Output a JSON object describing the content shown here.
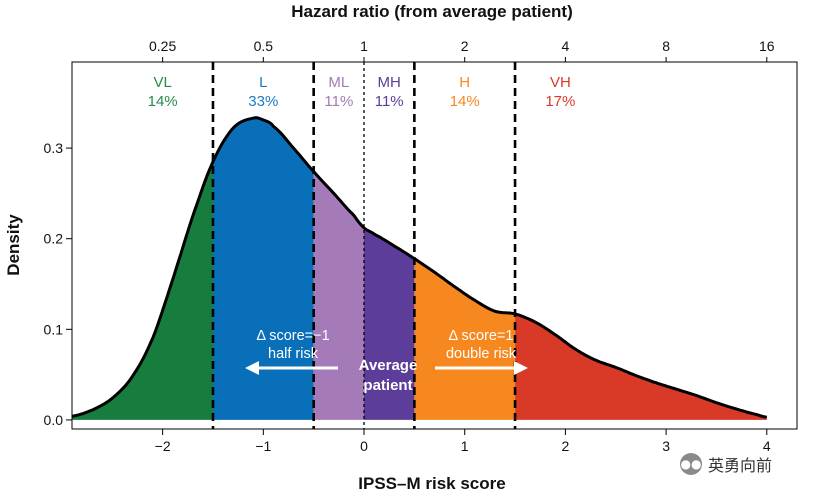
{
  "chart_data": {
    "type": "area",
    "xlabel": "IPSS–M risk score",
    "ylabel": "Density",
    "top_axis_label": "Hazard ratio (from average patient)",
    "xlim": [
      -2.9,
      4.3
    ],
    "ylim": [
      -0.01,
      0.395
    ],
    "x_ticks": [
      -2,
      -1,
      0,
      1,
      2,
      3,
      4
    ],
    "x_tick_labels": [
      "−2",
      "−1",
      "0",
      "1",
      "2",
      "3",
      "4"
    ],
    "y_ticks": [
      0.0,
      0.1,
      0.2,
      0.3
    ],
    "y_tick_labels": [
      "0.0",
      "0.1",
      "0.2",
      "0.3"
    ],
    "top_ticks_at_score": [
      -2,
      -1,
      0,
      1,
      2,
      3,
      4
    ],
    "top_tick_labels": [
      "0.25",
      "0.5",
      "1",
      "2",
      "4",
      "8",
      "16"
    ],
    "density_curve": {
      "x": [
        -2.9,
        -2.7,
        -2.5,
        -2.3,
        -2.1,
        -1.9,
        -1.7,
        -1.5,
        -1.3,
        -1.1,
        -1.0,
        -0.9,
        -0.7,
        -0.5,
        -0.3,
        -0.1,
        0.0,
        0.1,
        0.3,
        0.5,
        0.7,
        0.9,
        1.1,
        1.3,
        1.5,
        1.7,
        1.9,
        2.1,
        2.3,
        2.5,
        2.7,
        2.9,
        3.1,
        3.3,
        3.5,
        3.7,
        3.9,
        4.0
      ],
      "y": [
        0.004,
        0.011,
        0.024,
        0.048,
        0.09,
        0.155,
        0.225,
        0.285,
        0.322,
        0.333,
        0.331,
        0.324,
        0.3,
        0.274,
        0.25,
        0.226,
        0.212,
        0.205,
        0.192,
        0.178,
        0.163,
        0.147,
        0.132,
        0.12,
        0.117,
        0.108,
        0.094,
        0.078,
        0.066,
        0.058,
        0.049,
        0.041,
        0.034,
        0.027,
        0.019,
        0.012,
        0.006,
        0.003
      ]
    },
    "categories": [
      {
        "name": "VL",
        "percent": "14%",
        "from": -2.9,
        "to": -1.5,
        "color": "#177d3e"
      },
      {
        "name": "L",
        "percent": "33%",
        "from": -1.5,
        "to": -0.5,
        "color": "#0a6fb9"
      },
      {
        "name": "ML",
        "percent": "11%",
        "from": -0.5,
        "to": 0.0,
        "color": "#a57ab9"
      },
      {
        "name": "MH",
        "percent": "11%",
        "from": 0.0,
        "to": 0.5,
        "color": "#5c3d99"
      },
      {
        "name": "H",
        "percent": "14%",
        "from": 0.5,
        "to": 1.5,
        "color": "#f7881f"
      },
      {
        "name": "VH",
        "percent": "17%",
        "from": 1.5,
        "to": 4.0,
        "color": "#d93a28"
      }
    ],
    "label_colors": {
      "VL": "#2a8a4a",
      "L": "#1b7bc4",
      "ML": "#a57ab9",
      "MH": "#5c3d99",
      "H": "#f7881f",
      "VH": "#d93a28"
    },
    "dashed_lines_at": [
      -1.5,
      -0.5,
      0.0,
      0.5,
      1.5
    ],
    "annotations": {
      "half_risk_line1": "Δ score=−1",
      "half_risk_line2": "half risk",
      "double_risk_line1": "Δ score=1",
      "double_risk_line2": "double risk",
      "average_line1": "Average",
      "average_line2": "patient"
    }
  },
  "watermark": {
    "icon": "wechat-icon",
    "text": "英勇向前"
  }
}
